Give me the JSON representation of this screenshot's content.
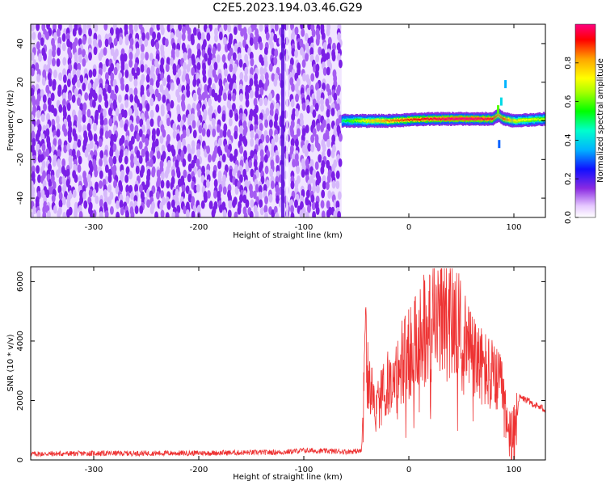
{
  "title": "C2E5.2023.194.03.46.G29",
  "chart_data": [
    {
      "type": "heatmap",
      "xlabel": "Height of straight line (km)",
      "ylabel": "Frequency (Hz)",
      "xlim": [
        -360,
        130
      ],
      "ylim": [
        -50,
        50
      ],
      "xticks": [
        -300,
        -200,
        -100,
        0,
        100
      ],
      "yticks": [
        -40,
        -20,
        0,
        20,
        40
      ],
      "colorbar": {
        "label": "Normalized spectral amplitude",
        "range": [
          0,
          1
        ],
        "ticks": [
          0.0,
          0.2,
          0.4,
          0.6,
          0.8
        ]
      },
      "noise_region": {
        "x": [
          -360,
          -64
        ],
        "y": [
          -50,
          50
        ],
        "level": 0.15
      },
      "vertical_streak": {
        "x": -120,
        "level": 0.25
      },
      "signal_trace": {
        "x": [
          -64,
          -40,
          -20,
          0,
          20,
          40,
          60,
          80,
          85,
          90,
          100,
          130
        ],
        "freq_center": [
          0,
          0,
          0,
          0.5,
          1,
          1,
          1,
          1,
          3,
          1,
          0,
          1
        ],
        "amplitude": [
          0.5,
          0.75,
          0.85,
          0.9,
          0.95,
          1.0,
          1.0,
          0.95,
          0.85,
          0.9,
          0.75,
          0.65
        ]
      },
      "grid": false
    },
    {
      "type": "line",
      "xlabel": "Height of straight line (km)",
      "ylabel": "SNR (10 * v/v)",
      "xlim": [
        -360,
        130
      ],
      "ylim": [
        0,
        6500
      ],
      "xticks": [
        -300,
        -200,
        -100,
        0,
        100
      ],
      "yticks": [
        0,
        2000,
        4000,
        6000
      ],
      "series": [
        {
          "color": "#ee3333",
          "x": [
            -360,
            -300,
            -200,
            -120,
            -100,
            -60,
            -45,
            -42,
            -38,
            -30,
            -20,
            -10,
            0,
            10,
            20,
            30,
            40,
            50,
            60,
            70,
            80,
            90,
            95,
            100,
            105,
            110,
            120,
            130
          ],
          "y": [
            200,
            220,
            230,
            260,
            320,
            280,
            300,
            4000,
            2500,
            1800,
            2600,
            3200,
            3600,
            4200,
            4700,
            4900,
            4700,
            4300,
            3500,
            3100,
            2800,
            2300,
            800,
            600,
            2100,
            2050,
            1850,
            1700
          ]
        }
      ],
      "grid": false
    }
  ]
}
